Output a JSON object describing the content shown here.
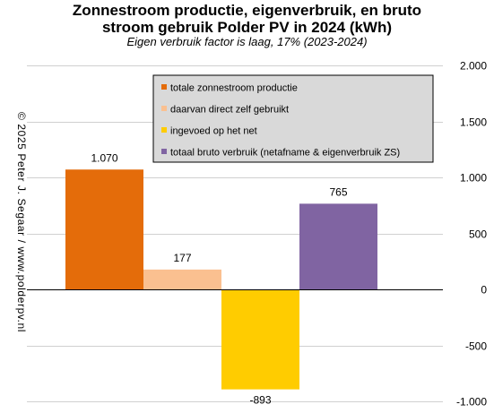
{
  "title_line1": "Zonnestroom productie, eigenverbruik,  en bruto",
  "title_line2": "stroom gebruik Polder PV in 2024 (kWh)",
  "subtitle": "Eigen verbruik factor is laag, 17% (2023-2024)",
  "copyright": "© 2025 Peter J. Segaar / www.polderpv.nl",
  "chart_data": {
    "type": "bar",
    "title": "Zonnestroom productie, eigenverbruik,  en bruto stroom gebruik Polder PV in 2024 (kWh)",
    "subtitle": "Eigen verbruik factor is laag, 17% (2023-2024)",
    "ylim": [
      -1000,
      2000
    ],
    "yticks": [
      -1000,
      -500,
      0,
      500,
      1000,
      1500,
      2000
    ],
    "ytick_labels": [
      "-1.000",
      "-500",
      "0",
      "500",
      "1.000",
      "1.500",
      "2.000"
    ],
    "y_axis_side": "right",
    "grid": true,
    "legend_position": "top-right",
    "series": [
      {
        "name": "totale zonnestroom productie",
        "value": 1070,
        "label": "1.070",
        "color": "#E46C0A"
      },
      {
        "name": "daarvan direct zelf gebruikt",
        "value": 177,
        "label": "177",
        "color": "#FAC090"
      },
      {
        "name": "ingevoed op het net",
        "value": -893,
        "label": "-893",
        "color": "#FFCC00"
      },
      {
        "name": "totaal bruto verbruik (netafname & eigenverbruik ZS)",
        "value": 765,
        "label": "765",
        "color": "#8064A2"
      }
    ]
  }
}
